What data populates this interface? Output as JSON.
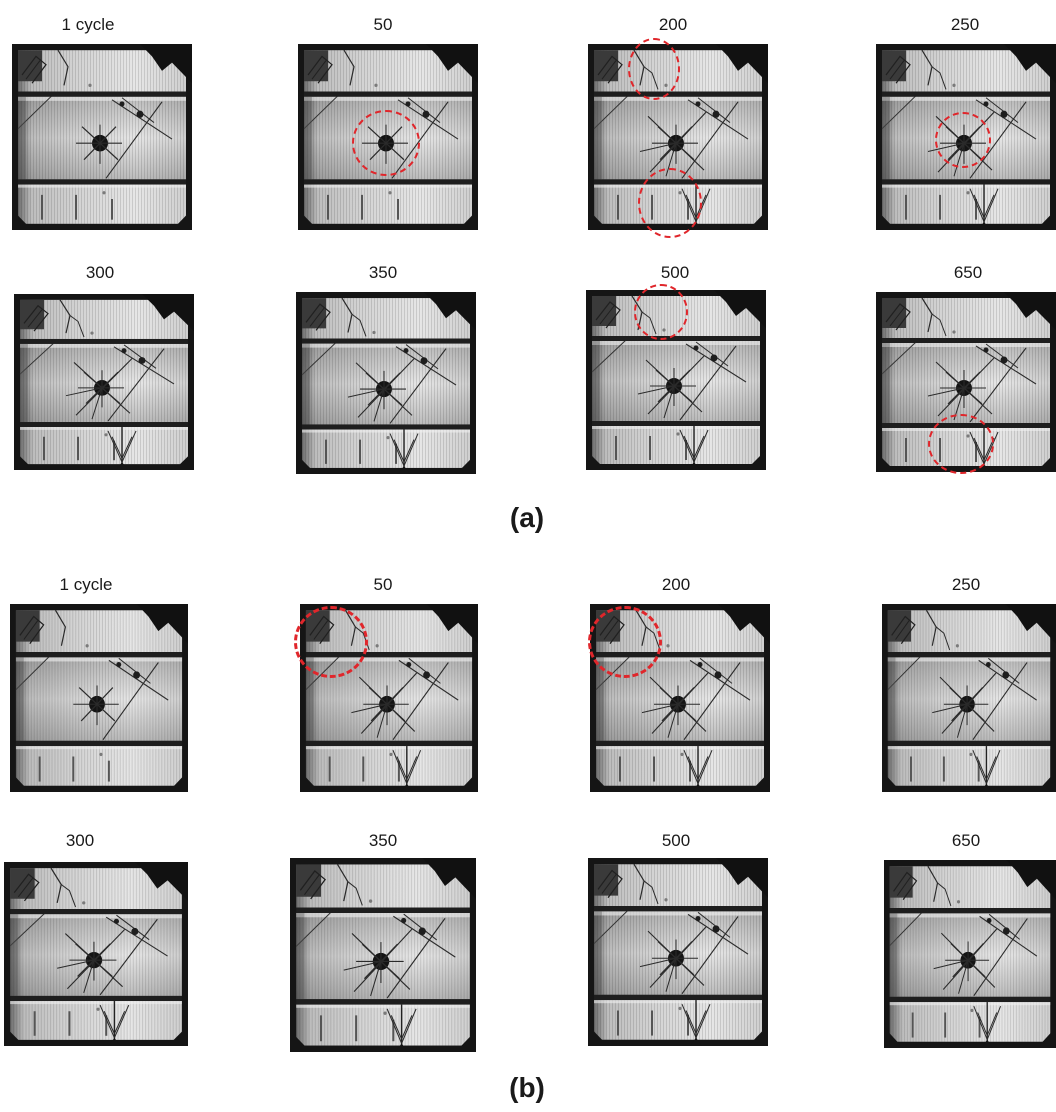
{
  "panel_a": {
    "letter": "(a)",
    "cells": [
      {
        "caption": "1 cycle"
      },
      {
        "caption": "50"
      },
      {
        "caption": "200"
      },
      {
        "caption": "250"
      },
      {
        "caption": "300"
      },
      {
        "caption": "350"
      },
      {
        "caption": "500"
      },
      {
        "caption": "650"
      }
    ]
  },
  "panel_b": {
    "letter": "(b)",
    "cells": [
      {
        "caption": "1 cycle"
      },
      {
        "caption": "50"
      },
      {
        "caption": "200"
      },
      {
        "caption": "250"
      },
      {
        "caption": "300"
      },
      {
        "caption": "350"
      },
      {
        "caption": "500"
      },
      {
        "caption": "650"
      }
    ]
  },
  "colors": {
    "highlight_ring": "#e0262b",
    "frame": "#1c1c1c",
    "cell_light": "#d9d9d9",
    "crack": "#2a2a2a"
  }
}
